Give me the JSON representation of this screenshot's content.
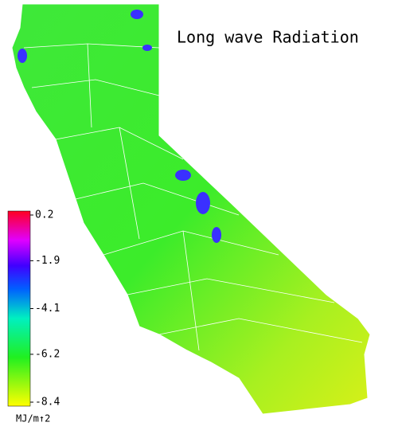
{
  "title": "Long wave Radiation",
  "colorbar": {
    "lim": [
      -8.4,
      0.2
    ],
    "ticks": [
      0.2,
      -1.9,
      -4.1,
      -6.2,
      -8.4
    ],
    "unit": "MJ/m↑2"
  }
}
